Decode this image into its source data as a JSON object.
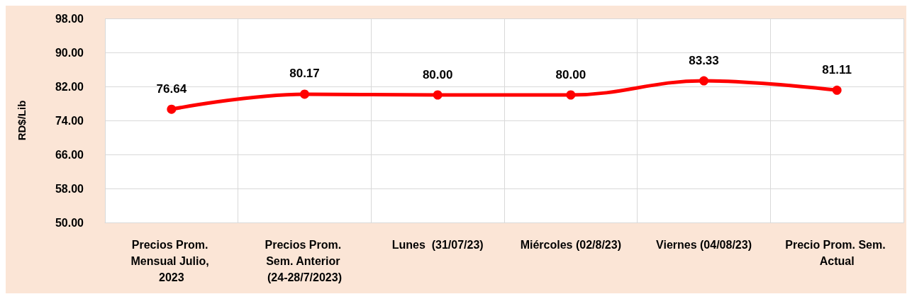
{
  "chart_data": {
    "type": "line",
    "ylabel": "RD$/Lib",
    "categories": [
      "Precios Prom. Mensual Julio, 2023",
      "Precios Prom. Sem. Anterior (24-28/7/2023)",
      "Lunes  (31/07/23)",
      "Miércoles (02/8/23)",
      "Viernes (04/08/23)",
      "Precio Prom. Sem. Actual"
    ],
    "series": [
      {
        "color": "#ff0000",
        "values": [
          76.64,
          80.17,
          80.0,
          80.0,
          83.33,
          81.11
        ]
      }
    ],
    "value_labels": [
      "76.64",
      "80.17",
      "80.00",
      "80.00",
      "83.33",
      "81.11"
    ],
    "ylim": [
      50,
      98
    ],
    "yticks": [
      {
        "value": 50,
        "label": "50.00"
      },
      {
        "value": 58,
        "label": "58.00"
      },
      {
        "value": 66,
        "label": "66.00"
      },
      {
        "value": 74,
        "label": "74.00"
      },
      {
        "value": 82,
        "label": "82.00"
      },
      {
        "value": 90,
        "label": "90.00"
      },
      {
        "value": 98,
        "label": "98.00"
      }
    ],
    "grid": true,
    "marker": "circle",
    "line_style": "solid"
  }
}
